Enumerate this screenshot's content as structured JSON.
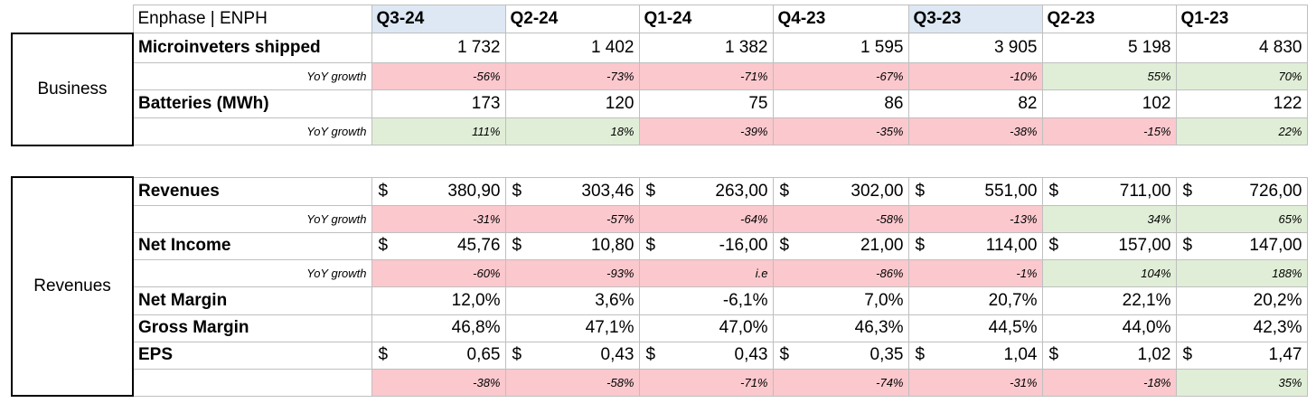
{
  "header": {
    "title": "Enphase | ENPH",
    "quarters": [
      {
        "label": "Q3-24",
        "highlight": true
      },
      {
        "label": "Q2-24",
        "highlight": false
      },
      {
        "label": "Q1-24",
        "highlight": false
      },
      {
        "label": "Q4-23",
        "highlight": false
      },
      {
        "label": "Q3-23",
        "highlight": true
      },
      {
        "label": "Q2-23",
        "highlight": false
      },
      {
        "label": "Q1-23",
        "highlight": false
      }
    ]
  },
  "business": {
    "section_label": "Business",
    "microinverters": {
      "label": "Microinveters shipped",
      "values": [
        "1 732",
        "1 402",
        "1 382",
        "1 595",
        "3 905",
        "5 198",
        "4 830"
      ],
      "growth_label": "YoY growth",
      "growth": [
        {
          "v": "-56%",
          "s": "neg"
        },
        {
          "v": "-73%",
          "s": "neg"
        },
        {
          "v": "-71%",
          "s": "neg"
        },
        {
          "v": "-67%",
          "s": "neg"
        },
        {
          "v": "-10%",
          "s": "neg"
        },
        {
          "v": "55%",
          "s": "pos"
        },
        {
          "v": "70%",
          "s": "pos"
        }
      ]
    },
    "batteries": {
      "label": "Batteries (MWh)",
      "values": [
        "173",
        "120",
        "75",
        "86",
        "82",
        "102",
        "122"
      ],
      "growth_label": "YoY growth",
      "growth": [
        {
          "v": "111%",
          "s": "pos"
        },
        {
          "v": "18%",
          "s": "pos"
        },
        {
          "v": "-39%",
          "s": "neg"
        },
        {
          "v": "-35%",
          "s": "neg"
        },
        {
          "v": "-38%",
          "s": "neg"
        },
        {
          "v": "-15%",
          "s": "neg"
        },
        {
          "v": "22%",
          "s": "pos"
        }
      ]
    }
  },
  "revenues": {
    "section_label": "Revenues",
    "currency_symbol": "$",
    "revenues": {
      "label": "Revenues",
      "values": [
        "380,90",
        "303,46",
        "263,00",
        "302,00",
        "551,00",
        "711,00",
        "726,00"
      ],
      "growth_label": "YoY growth",
      "growth": [
        {
          "v": "-31%",
          "s": "neg"
        },
        {
          "v": "-57%",
          "s": "neg"
        },
        {
          "v": "-64%",
          "s": "neg"
        },
        {
          "v": "-58%",
          "s": "neg"
        },
        {
          "v": "-13%",
          "s": "neg"
        },
        {
          "v": "34%",
          "s": "pos"
        },
        {
          "v": "65%",
          "s": "pos"
        }
      ]
    },
    "net_income": {
      "label": "Net Income",
      "values": [
        "45,76",
        "10,80",
        "-16,00",
        "21,00",
        "114,00",
        "157,00",
        "147,00"
      ],
      "growth_label": "YoY growth",
      "growth": [
        {
          "v": "-60%",
          "s": "neg"
        },
        {
          "v": "-93%",
          "s": "neg"
        },
        {
          "v": "i.e",
          "s": "neg"
        },
        {
          "v": "-86%",
          "s": "neg"
        },
        {
          "v": "-1%",
          "s": "neg"
        },
        {
          "v": "104%",
          "s": "pos"
        },
        {
          "v": "188%",
          "s": "pos"
        }
      ]
    },
    "net_margin": {
      "label": "Net Margin",
      "values": [
        "12,0%",
        "3,6%",
        "-6,1%",
        "7,0%",
        "20,7%",
        "22,1%",
        "20,2%"
      ]
    },
    "gross_margin": {
      "label": "Gross Margin",
      "values": [
        "46,8%",
        "47,1%",
        "47,0%",
        "46,3%",
        "44,5%",
        "44,0%",
        "42,3%"
      ]
    },
    "eps": {
      "label": "EPS",
      "values": [
        "0,65",
        "0,43",
        "0,43",
        "0,35",
        "1,04",
        "1,02",
        "1,47"
      ],
      "growth": [
        {
          "v": "-38%",
          "s": "neg"
        },
        {
          "v": "-58%",
          "s": "neg"
        },
        {
          "v": "-71%",
          "s": "neg"
        },
        {
          "v": "-74%",
          "s": "neg"
        },
        {
          "v": "-31%",
          "s": "neg"
        },
        {
          "v": "-18%",
          "s": "neg"
        },
        {
          "v": "35%",
          "s": "pos"
        }
      ]
    }
  }
}
